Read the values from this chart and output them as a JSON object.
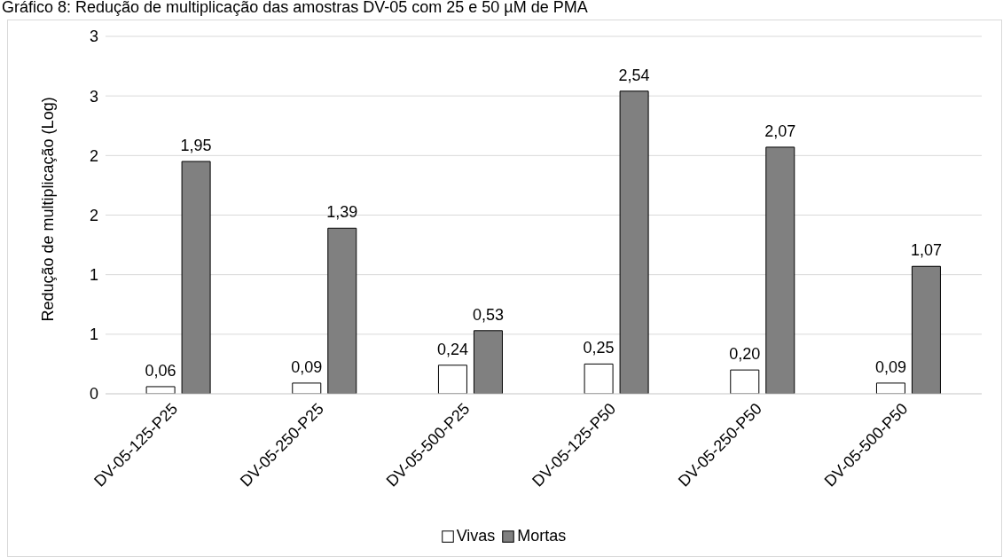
{
  "chart_data": {
    "type": "bar",
    "title": "Gráfico 8: Redução de multiplicação das amostras DV-05 com 25 e 50 µM de PMA",
    "ylabel": "Redução de multiplicação (Log)",
    "categories": [
      "DV-05-125-P25",
      "DV-05-250-P25",
      "DV-05-500-P25",
      "DV-05-125-P50",
      "DV-05-250-P50",
      "DV-05-500-P50"
    ],
    "series": [
      {
        "name": "Vivas",
        "color": "#ffffff",
        "values": [
          0.06,
          0.09,
          0.24,
          0.25,
          0.2,
          0.09
        ],
        "value_labels": [
          "0,06",
          "0,09",
          "0,24",
          "0,25",
          "0,20",
          "0,09"
        ]
      },
      {
        "name": "Mortas",
        "color": "#808080",
        "values": [
          1.95,
          1.39,
          0.53,
          2.54,
          2.07,
          1.07
        ],
        "value_labels": [
          "1,95",
          "1,39",
          "0,53",
          "2,54",
          "2,07",
          "1,07"
        ]
      }
    ],
    "ylim": [
      0,
      3
    ],
    "yticks": [
      0,
      {
        "value": 0.5,
        "label": "1"
      },
      {
        "value": 1,
        "label": "1"
      },
      {
        "value": 1.5,
        "label": "2"
      },
      {
        "value": 2,
        "label": "2"
      },
      {
        "value": 2.5,
        "label": "3"
      },
      {
        "value": 3,
        "label": "3"
      }
    ],
    "grid": "y",
    "legend": "bottom"
  }
}
